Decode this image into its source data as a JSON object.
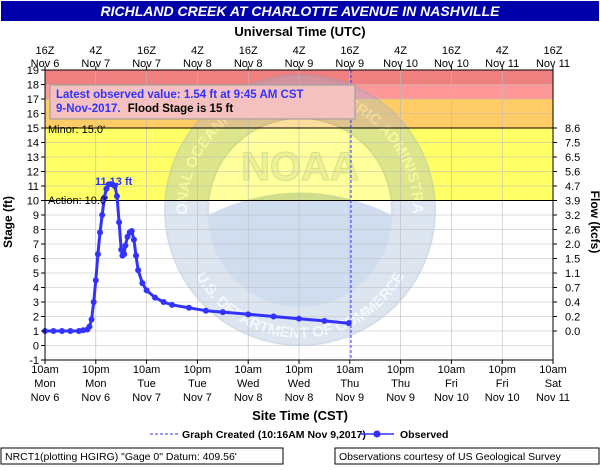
{
  "title": "RICHLAND CREEK AT CHARLOTTE AVENUE IN NASHVILLE",
  "top_axis_title": "Universal Time (UTC)",
  "bottom_axis_title": "Site Time (CST)",
  "top_ticks": [
    {
      "t": "16Z",
      "d": "Nov 6"
    },
    {
      "t": "4Z",
      "d": "Nov 7"
    },
    {
      "t": "16Z",
      "d": "Nov 7"
    },
    {
      "t": "4Z",
      "d": "Nov 8"
    },
    {
      "t": "16Z",
      "d": "Nov 8"
    },
    {
      "t": "4Z",
      "d": "Nov 9"
    },
    {
      "t": "16Z",
      "d": "Nov 9"
    },
    {
      "t": "4Z",
      "d": "Nov 10"
    },
    {
      "t": "16Z",
      "d": "Nov 10"
    },
    {
      "t": "4Z",
      "d": "Nov 11"
    },
    {
      "t": "16Z",
      "d": "Nov 11"
    }
  ],
  "bottom_ticks": [
    {
      "t": "10am",
      "w": "Mon",
      "d": "Nov 6"
    },
    {
      "t": "10pm",
      "w": "Mon",
      "d": "Nov 6"
    },
    {
      "t": "10am",
      "w": "Tue",
      "d": "Nov 7"
    },
    {
      "t": "10pm",
      "w": "Tue",
      "d": "Nov 7"
    },
    {
      "t": "10am",
      "w": "Wed",
      "d": "Nov 8"
    },
    {
      "t": "10pm",
      "w": "Wed",
      "d": "Nov 8"
    },
    {
      "t": "10am",
      "w": "Thu",
      "d": "Nov 9"
    },
    {
      "t": "10pm",
      "w": "Thu",
      "d": "Nov 9"
    },
    {
      "t": "10am",
      "w": "Fri",
      "d": "Nov 10"
    },
    {
      "t": "10pm",
      "w": "Fri",
      "d": "Nov 10"
    },
    {
      "t": "10am",
      "w": "Sat",
      "d": "Nov 11"
    }
  ],
  "left_axis_title": "Stage (ft)",
  "right_axis_title": "Flow (kcfs)",
  "right_ticks": [
    {
      "stage": 15,
      "label": "8.6"
    },
    {
      "stage": 14,
      "label": "7.5"
    },
    {
      "stage": 13,
      "label": "6.5"
    },
    {
      "stage": 12,
      "label": "5.6"
    },
    {
      "stage": 11,
      "label": "4.7"
    },
    {
      "stage": 10,
      "label": "3.9"
    },
    {
      "stage": 9,
      "label": "3.2"
    },
    {
      "stage": 8,
      "label": "2.6"
    },
    {
      "stage": 7,
      "label": "2.0"
    },
    {
      "stage": 6,
      "label": "1.5"
    },
    {
      "stage": 5,
      "label": "1.1"
    },
    {
      "stage": 4,
      "label": "0.7"
    },
    {
      "stage": 3,
      "label": "0.4"
    },
    {
      "stage": 2,
      "label": "0.2"
    },
    {
      "stage": 1,
      "label": "0.0"
    }
  ],
  "latest_line1": "Latest observed value: 1.54 ft at 9:45 AM CST",
  "latest_line2_date": "9-Nov-2017.",
  "latest_line2_flood": "Flood Stage is 15 ft",
  "minor_label": "Minor: 15.0'",
  "action_label": "Action: 10.0'",
  "peak_label": "11.13 ft",
  "legend_created": "Graph Created (10:16AM Nov 9,2017)",
  "legend_observed": "Observed",
  "footer_left": "NRCT1(plotting HGIRG) \"Gage 0\" Datum: 409.56'",
  "footer_right": "Observations courtesy of US Geological Survey",
  "watermark_seal": "NATIONAL OCEANIC AND ATMOSPHERIC ADMINISTRATION",
  "watermark_bottom": "U.S. DEPARTMENT OF COMMERCE",
  "watermark_logo": "NOAA",
  "colors": {
    "major": "#f08080",
    "moderate": "#ff9999",
    "minor_band": "#ffcc66",
    "action_band": "#ffff66",
    "series": "#3333ff",
    "title_bg": "#0000aa"
  },
  "chart_data": {
    "type": "line",
    "title": "RICHLAND CREEK AT CHARLOTTE AVENUE IN NASHVILLE",
    "xlabel": "Site Time (CST)",
    "ylabel": "Stage (ft)",
    "y2label": "Flow (kcfs)",
    "x_units": "hours after 10am Mon Nov 6 (CST)",
    "xlim": [
      0,
      120
    ],
    "ylim": [
      -1,
      19
    ],
    "flood_categories": {
      "action": 10,
      "minor": 15,
      "moderate": 17,
      "major": 18
    },
    "graph_created_hour": 72.27,
    "series": [
      {
        "name": "Observed",
        "points": [
          [
            0,
            1.0
          ],
          [
            2,
            1.0
          ],
          [
            4,
            1.0
          ],
          [
            6,
            1.0
          ],
          [
            8,
            1.0
          ],
          [
            9,
            1.05
          ],
          [
            10,
            1.1
          ],
          [
            10.5,
            1.3
          ],
          [
            11,
            1.8
          ],
          [
            11.5,
            3.0
          ],
          [
            12,
            4.5
          ],
          [
            12.5,
            6.3
          ],
          [
            13,
            7.8
          ],
          [
            13.5,
            9.0
          ],
          [
            14,
            10.2
          ],
          [
            14.5,
            10.8
          ],
          [
            15,
            11.1
          ],
          [
            15.5,
            11.13
          ],
          [
            16,
            11.1
          ],
          [
            16.5,
            11.0
          ],
          [
            17,
            10.3
          ],
          [
            17.5,
            8.5
          ],
          [
            18,
            6.6
          ],
          [
            18.3,
            6.2
          ],
          [
            18.7,
            6.3
          ],
          [
            19,
            6.9
          ],
          [
            19.5,
            7.5
          ],
          [
            20,
            7.8
          ],
          [
            20.5,
            7.9
          ],
          [
            21,
            7.3
          ],
          [
            21.5,
            6.2
          ],
          [
            22,
            5.2
          ],
          [
            23,
            4.3
          ],
          [
            24,
            3.8
          ],
          [
            26,
            3.3
          ],
          [
            28,
            3.0
          ],
          [
            30,
            2.8
          ],
          [
            34,
            2.6
          ],
          [
            38,
            2.4
          ],
          [
            42,
            2.3
          ],
          [
            48,
            2.15
          ],
          [
            54,
            2.0
          ],
          [
            60,
            1.85
          ],
          [
            66,
            1.7
          ],
          [
            71.75,
            1.54
          ]
        ]
      }
    ]
  }
}
